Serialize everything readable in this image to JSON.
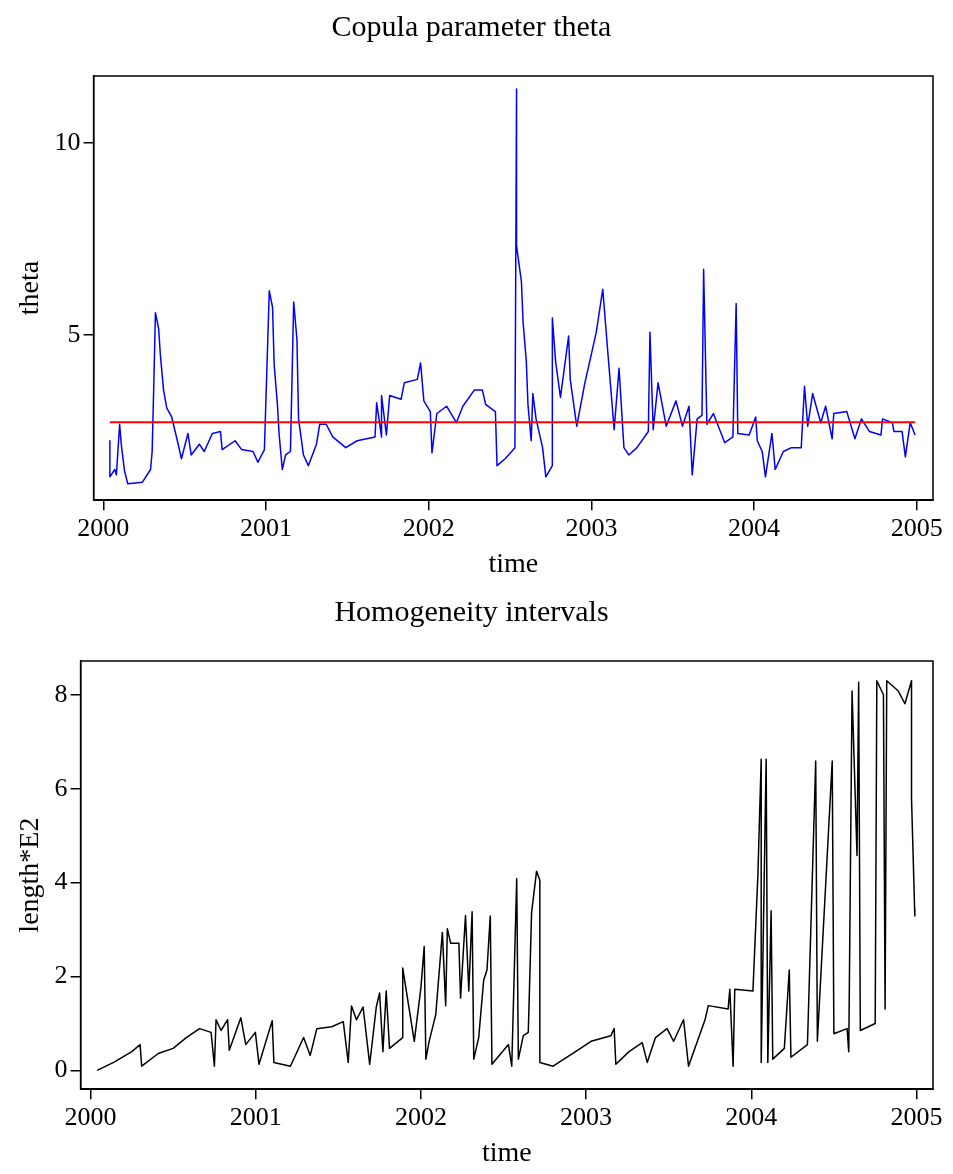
{
  "chart_data": [
    {
      "type": "line",
      "title": "Copula parameter theta",
      "xlabel": "time",
      "ylabel": "theta",
      "xlim": [
        1999.94,
        2005.1
      ],
      "ylim": [
        0.69,
        11.75
      ],
      "xticks": [
        2000,
        2001,
        2002,
        2003,
        2004,
        2005
      ],
      "yticks": [
        5,
        10
      ],
      "x": [
        2000.04,
        2000.04,
        2000.07,
        2000.08,
        2000.1,
        2000.11,
        2000.13,
        2000.15,
        2000.24,
        2000.29,
        2000.3,
        2000.31,
        2000.32,
        2000.34,
        2000.35,
        2000.37,
        2000.39,
        2000.42,
        2000.46,
        2000.48,
        2000.52,
        2000.54,
        2000.59,
        2000.62,
        2000.67,
        2000.72,
        2000.73,
        2000.81,
        2000.85,
        2000.92,
        2000.95,
        2000.99,
        2001.02,
        2001.04,
        2001.05,
        2001.07,
        2001.08,
        2001.1,
        2001.12,
        2001.15,
        2001.17,
        2001.19,
        2001.2,
        2001.23,
        2001.26,
        2001.31,
        2001.33,
        2001.37,
        2001.41,
        2001.49,
        2001.56,
        2001.67,
        2001.68,
        2001.71,
        2001.71,
        2001.74,
        2001.76,
        2001.83,
        2001.85,
        2001.93,
        2001.95,
        2001.97,
        2002.01,
        2002.02,
        2002.05,
        2002.11,
        2002.17,
        2002.21,
        2002.28,
        2002.33,
        2002.35,
        2002.41,
        2002.42,
        2002.47,
        2002.53,
        2002.54,
        2002.54,
        2002.57,
        2002.58,
        2002.6,
        2002.61,
        2002.63,
        2002.64,
        2002.66,
        2002.7,
        2002.72,
        2002.76,
        2002.76,
        2002.78,
        2002.81,
        2002.86,
        2002.87,
        2002.91,
        2002.96,
        2003.0,
        2003.03,
        2003.07,
        2003.1,
        2003.14,
        2003.17,
        2003.2,
        2003.23,
        2003.28,
        2003.35,
        2003.36,
        2003.38,
        2003.41,
        2003.46,
        2003.52,
        2003.56,
        2003.6,
        2003.62,
        2003.65,
        2003.68,
        2003.69,
        2003.71,
        2003.75,
        2003.82,
        2003.87,
        2003.89,
        2003.9,
        2003.97,
        2004.01,
        2004.02,
        2004.05,
        2004.07,
        2004.11,
        2004.13,
        2004.18,
        2004.23,
        2004.29,
        2004.31,
        2004.33,
        2004.36,
        2004.41,
        2004.44,
        2004.48,
        2004.49,
        2004.57,
        2004.62,
        2004.66,
        2004.71,
        2004.78,
        2004.79,
        2004.85,
        2004.86,
        2004.91,
        2004.93,
        2004.96,
        2004.99
      ],
      "series": [
        {
          "color": "#0000ff",
          "values": [
            2.24,
            1.3,
            1.49,
            1.35,
            2.67,
            2.15,
            1.45,
            1.12,
            1.16,
            1.49,
            1.96,
            3.7,
            5.58,
            5.16,
            4.5,
            3.56,
            3.09,
            2.86,
            2.15,
            1.77,
            2.43,
            1.87,
            2.15,
            1.96,
            2.43,
            2.48,
            2.01,
            2.24,
            2.01,
            1.96,
            1.68,
            2.01,
            6.15,
            5.72,
            4.22,
            3.19,
            2.43,
            1.49,
            1.87,
            1.96,
            5.86,
            4.88,
            2.81,
            1.87,
            1.59,
            2.15,
            2.67,
            2.67,
            2.34,
            2.06,
            2.24,
            2.34,
            3.23,
            2.34,
            3.42,
            2.39,
            3.42,
            3.32,
            3.75,
            3.84,
            4.27,
            3.28,
            3.0,
            1.92,
            2.95,
            3.14,
            2.71,
            3.14,
            3.56,
            3.56,
            3.19,
            3.0,
            1.59,
            1.77,
            2.06,
            11.41,
            7.32,
            6.38,
            5.34,
            4.31,
            3.19,
            2.24,
            3.47,
            2.81,
            2.06,
            1.3,
            1.59,
            5.44,
            4.31,
            3.37,
            4.97,
            3.84,
            2.62,
            3.75,
            4.5,
            5.07,
            6.19,
            4.6,
            2.53,
            4.13,
            2.06,
            1.87,
            2.06,
            2.48,
            5.07,
            2.53,
            3.75,
            2.62,
            3.28,
            2.62,
            3.14,
            1.35,
            2.81,
            2.9,
            6.71,
            2.67,
            2.95,
            2.19,
            2.34,
            5.82,
            2.43,
            2.39,
            2.86,
            2.24,
            1.96,
            1.3,
            2.43,
            1.49,
            1.96,
            2.06,
            2.06,
            3.66,
            2.62,
            3.47,
            2.71,
            3.14,
            2.29,
            2.95,
            3.0,
            2.29,
            2.81,
            2.48,
            2.39,
            2.81,
            2.71,
            2.48,
            2.48,
            1.82,
            2.71,
            2.39
          ]
        }
      ],
      "ref_lines": [
        {
          "axis": "y",
          "value": 2.72,
          "color": "#ff0000"
        }
      ]
    },
    {
      "type": "line",
      "title": "Homogeneity intervals",
      "xlabel": "time",
      "ylabel": "length*E2",
      "xlim": [
        1999.94,
        2005.1
      ],
      "ylim": [
        -0.4,
        8.72
      ],
      "xticks": [
        2000,
        2001,
        2002,
        2003,
        2004,
        2005
      ],
      "yticks": [
        0,
        2,
        4,
        6,
        8
      ],
      "x": [
        2000.04,
        2000.14,
        2000.25,
        2000.3,
        2000.31,
        2000.41,
        2000.5,
        2000.58,
        2000.66,
        2000.73,
        2000.75,
        2000.76,
        2000.79,
        2000.83,
        2000.84,
        2000.91,
        2000.94,
        2000.998,
        2001.02,
        2001.1,
        2001.11,
        2001.21,
        2001.29,
        2001.33,
        2001.37,
        2001.46,
        2001.53,
        2001.56,
        2001.58,
        2001.61,
        2001.65,
        2001.69,
        2001.73,
        2001.75,
        2001.77,
        2001.79,
        2001.81,
        2001.89,
        2001.89,
        2001.96,
        2002.0,
        2002.02,
        2002.03,
        2002.05,
        2002.09,
        2002.13,
        2002.15,
        2002.16,
        2002.18,
        2002.23,
        2002.24,
        2002.27,
        2002.29,
        2002.31,
        2002.32,
        2002.35,
        2002.38,
        2002.4,
        2002.42,
        2002.43,
        2002.53,
        2002.55,
        2002.58,
        2002.59,
        2002.62,
        2002.65,
        2002.67,
        2002.7,
        2002.72,
        2002.72,
        2002.8,
        2002.95,
        2003.03,
        2003.15,
        2003.17,
        2003.18,
        2003.26,
        2003.34,
        2003.37,
        2003.42,
        2003.49,
        2003.53,
        2003.59,
        2003.62,
        2003.72,
        2003.74,
        2003.86,
        2003.87,
        2003.89,
        2003.9,
        2004.01,
        2004.04,
        2004.06,
        2004.06,
        2004.09,
        2004.1,
        2004.12,
        2004.13,
        2004.2,
        2004.23,
        2004.24,
        2004.34,
        2004.39,
        2004.4,
        2004.49,
        2004.5,
        2004.58,
        2004.59,
        2004.61,
        2004.64,
        2004.65,
        2004.66,
        2004.75,
        2004.76,
        2004.8,
        2004.81,
        2004.82,
        2004.89,
        2004.93,
        2004.97,
        2004.97,
        2004.99,
        2004.99
      ],
      "series": [
        {
          "color": "#000000",
          "values": [
            0,
            0.17,
            0.4,
            0.55,
            0.09,
            0.36,
            0.47,
            0.7,
            0.89,
            0.81,
            0.09,
            1.08,
            0.85,
            1.08,
            0.43,
            1.12,
            0.55,
            0.81,
            0.13,
            1.06,
            0.17,
            0.09,
            0.7,
            0.32,
            0.89,
            0.93,
            1.04,
            0.17,
            1.37,
            1.08,
            1.35,
            0.13,
            1.35,
            1.65,
            0.4,
            1.69,
            0.47,
            0.7,
            2.18,
            0.62,
            1.76,
            2.64,
            0.24,
            0.62,
            1.19,
            2.94,
            1.38,
            3.02,
            2.71,
            2.71,
            1.54,
            3.3,
            1.69,
            3.38,
            0.24,
            0.7,
            1.92,
            2.14,
            3.29,
            0.13,
            0.55,
            0.09,
            4.08,
            0.24,
            0.74,
            0.81,
            3.36,
            4.24,
            4.05,
            0.17,
            0.09,
            0.43,
            0.62,
            0.74,
            0.89,
            0.13,
            0.4,
            0.59,
            0.17,
            0.7,
            0.89,
            0.62,
            1.08,
            0.09,
            1.08,
            1.38,
            1.31,
            1.73,
            0.09,
            1.73,
            1.69,
            4.16,
            6.63,
            0.17,
            6.63,
            0.17,
            3.4,
            0.24,
            0.47,
            2.14,
            0.28,
            0.55,
            6.59,
            0.62,
            6.59,
            0.78,
            0.89,
            0.4,
            8.08,
            4.58,
            8.27,
            0.85,
            1.0,
            8.3,
            8.0,
            1.31,
            8.3,
            8.08,
            7.81,
            8.3,
            5.79,
            3.29,
            3.44
          ]
        }
      ]
    }
  ]
}
